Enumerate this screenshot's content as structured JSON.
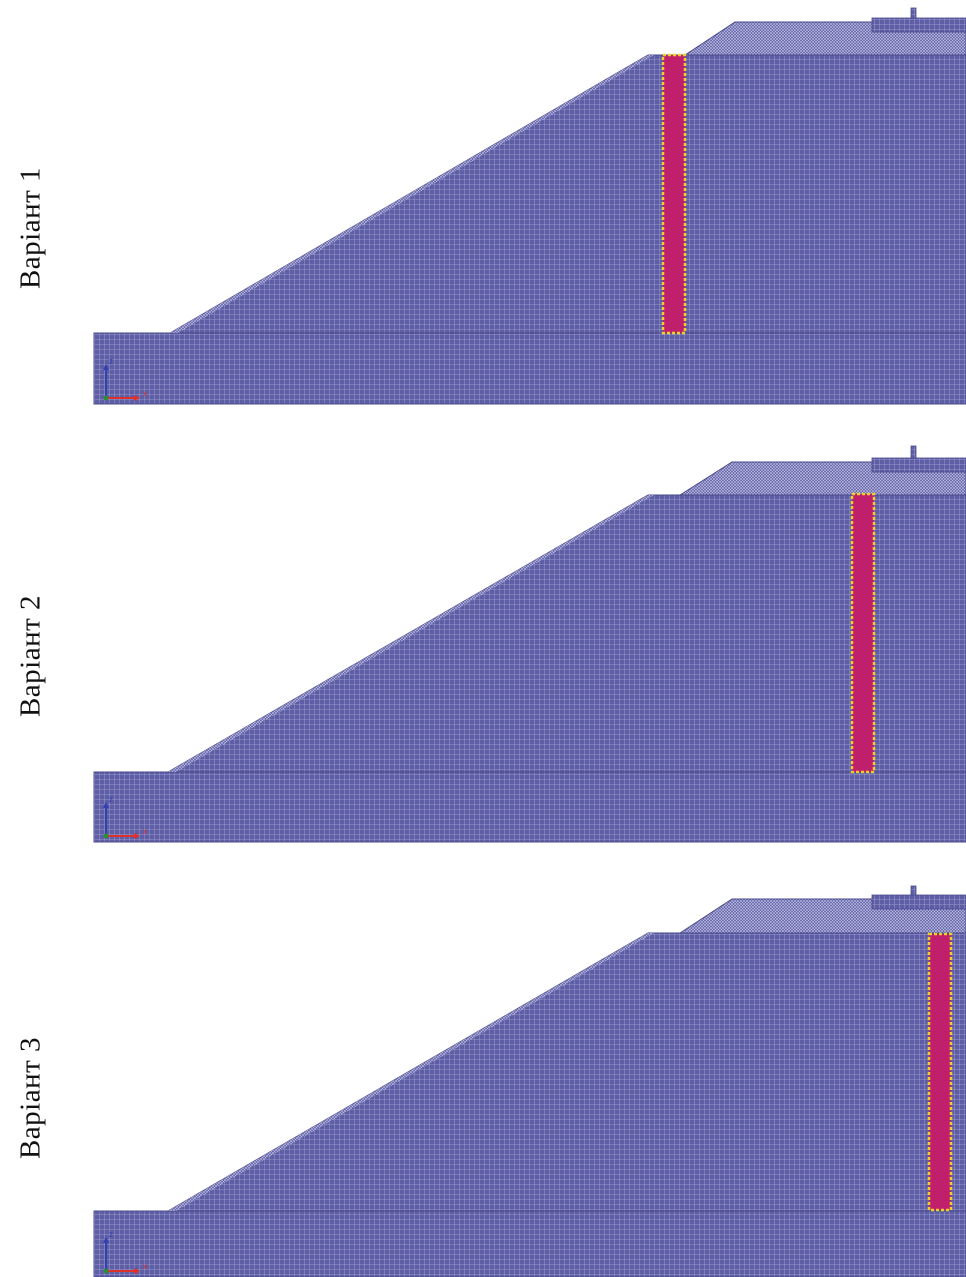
{
  "variants": [
    {
      "label": "Варіант 1"
    },
    {
      "label": "Варіант 2"
    },
    {
      "label": "Варіант 3"
    }
  ],
  "axis_labels": {
    "x": "x",
    "z": "z"
  },
  "colors": {
    "mesh_fill": "#5e5ea6",
    "mesh_line": "#a9a9d6",
    "mesh_dense_line": "#c5c5e6",
    "highlight_fill": "#bf1f6b",
    "highlight_border": "#f0d12a",
    "axis_x": "#e0302c",
    "axis_z": "#3340b0",
    "origin": "#2e8b3a"
  }
}
